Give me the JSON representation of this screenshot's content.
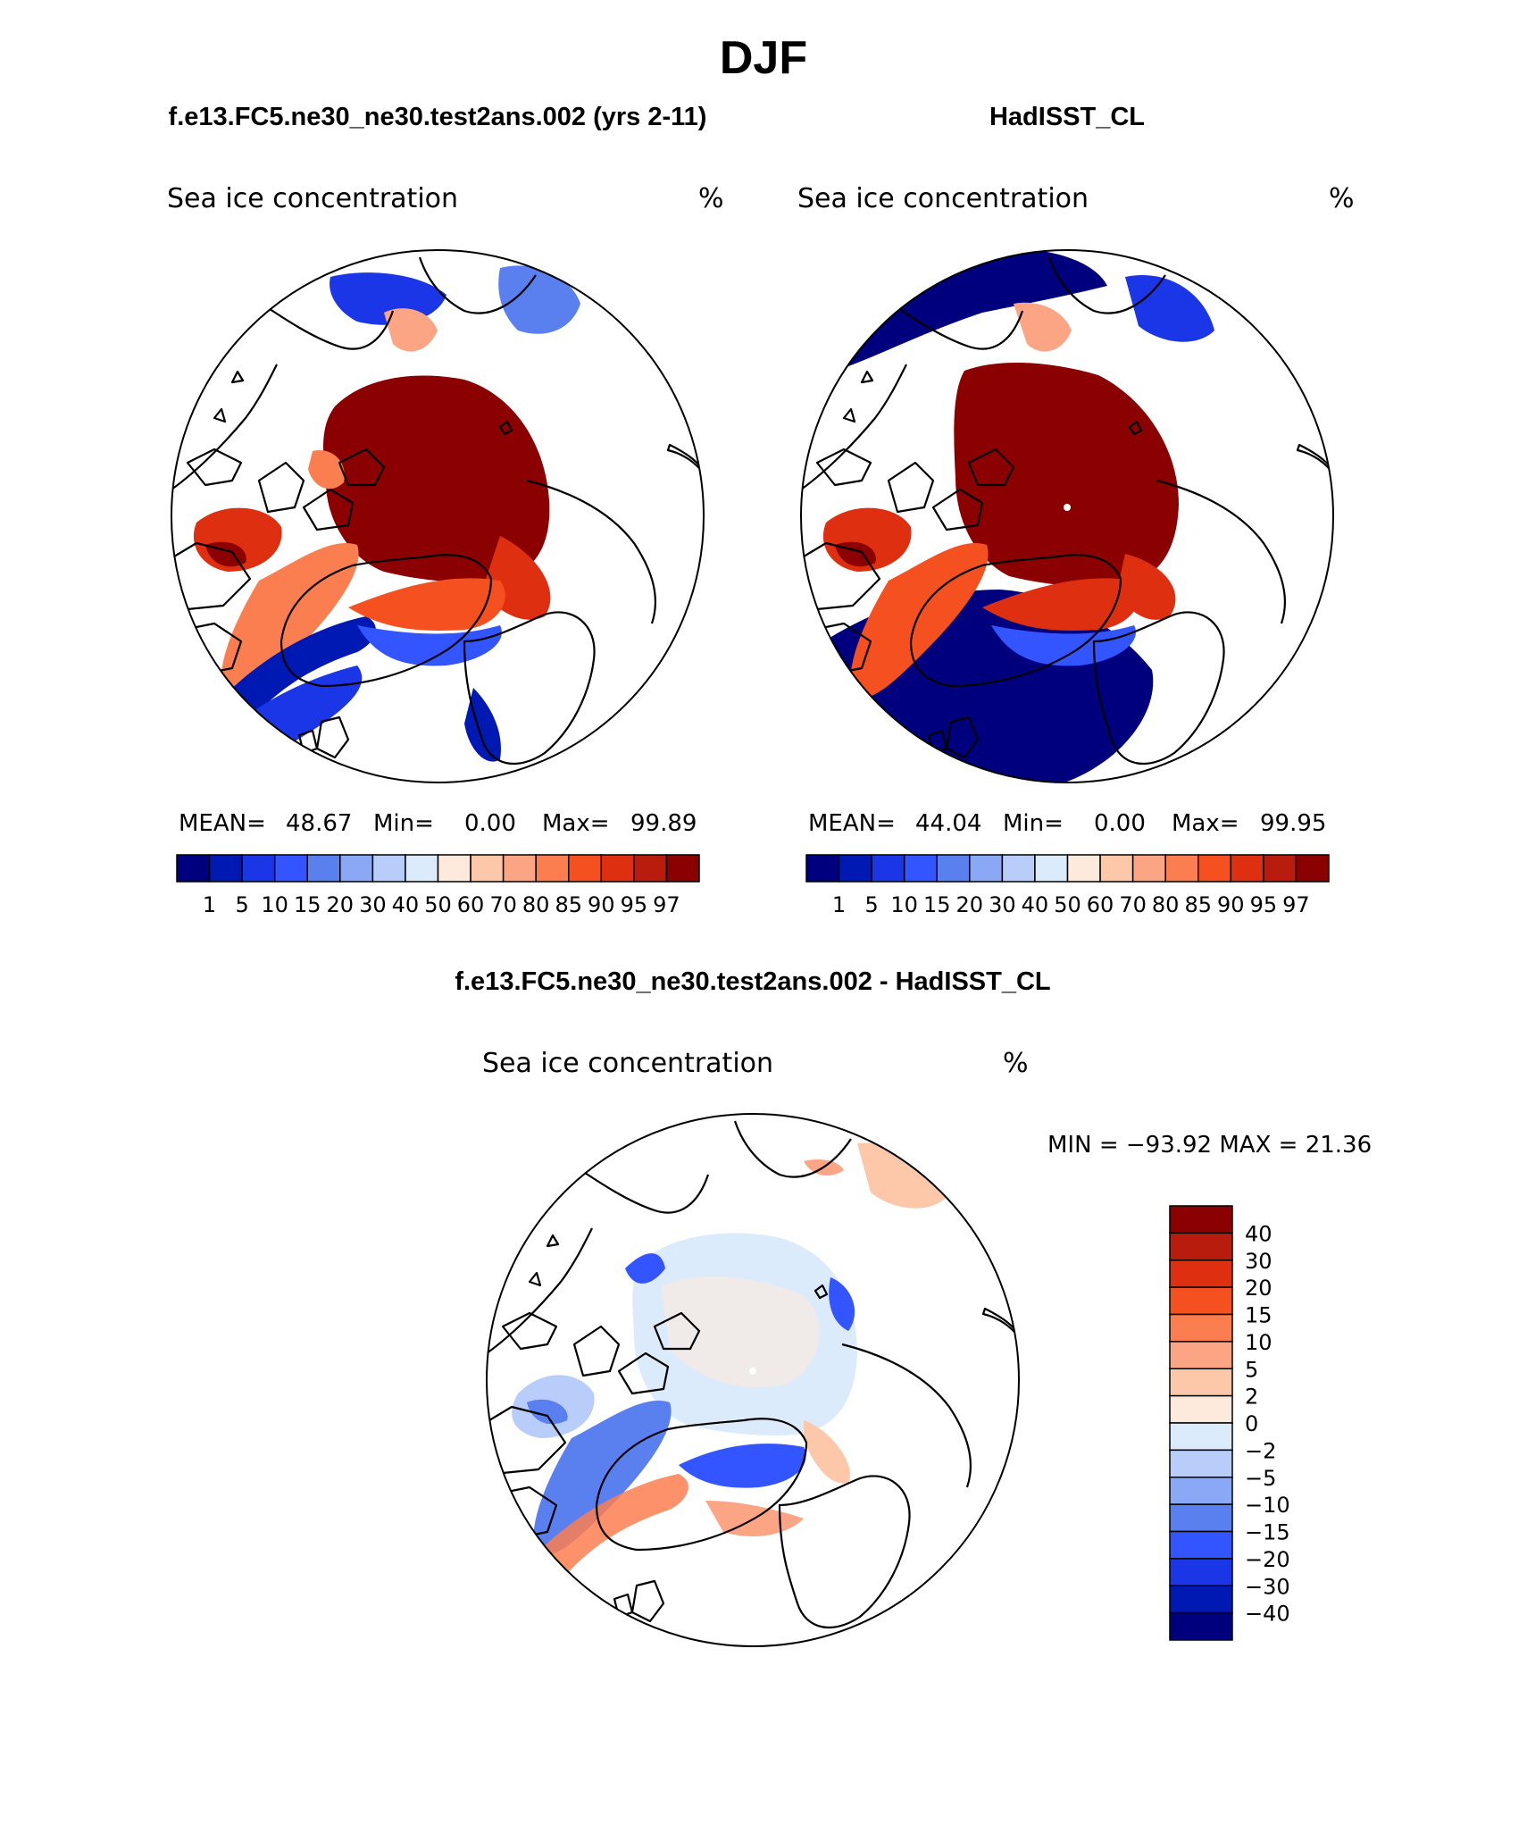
{
  "title": "DJF",
  "panels": [
    {
      "run_title": "f.e13.FC5.ne30_ne30.test2ans.002 (yrs 2-11)",
      "variable": "Sea ice concentration",
      "units": "%",
      "stats": {
        "mean_label": "MEAN=",
        "mean": "48.67",
        "min_label": "Min=",
        "min": "0.00",
        "max_label": "Max=",
        "max": "99.89"
      }
    },
    {
      "run_title": "HadISST_CL",
      "variable": "Sea ice concentration",
      "units": "%",
      "stats": {
        "mean_label": "MEAN=",
        "mean": "44.04",
        "min_label": "Min=",
        "min": "0.00",
        "max_label": "Max=",
        "max": "99.95"
      }
    }
  ],
  "diff_panel": {
    "run_title": "f.e13.FC5.ne30_ne30.test2ans.002 - HadISST_CL",
    "variable": "Sea ice concentration",
    "units": "%",
    "minmax": "MIN = −93.92 MAX =   21.36"
  },
  "colorbar_main": {
    "colors": [
      "#00007f",
      "#0019b3",
      "#1a36e6",
      "#3355ff",
      "#5a80f0",
      "#8aa8f5",
      "#b9cdfa",
      "#dcebfb",
      "#fdeadc",
      "#fdc7aa",
      "#fca584",
      "#fb7e50",
      "#f5501f",
      "#de2f10",
      "#b71c0c",
      "#8b0000"
    ],
    "labels": [
      "1",
      "5",
      "10",
      "15",
      "20",
      "30",
      "40",
      "50",
      "60",
      "70",
      "80",
      "85",
      "90",
      "95",
      "97"
    ]
  },
  "colorbar_diff": {
    "colors": [
      "#8b0000",
      "#b71c0c",
      "#de2f10",
      "#f5501f",
      "#fb7e50",
      "#fca584",
      "#fdc7aa",
      "#fdeadc",
      "#dcebfb",
      "#b9cdfa",
      "#8aa8f5",
      "#5a80f0",
      "#3355ff",
      "#1a36e6",
      "#0019b3",
      "#00007f"
    ],
    "labels": [
      "40",
      "30",
      "20",
      "15",
      "10",
      "5",
      "2",
      "0",
      "−2",
      "−5",
      "−10",
      "−15",
      "−20",
      "−30",
      "−40"
    ]
  }
}
